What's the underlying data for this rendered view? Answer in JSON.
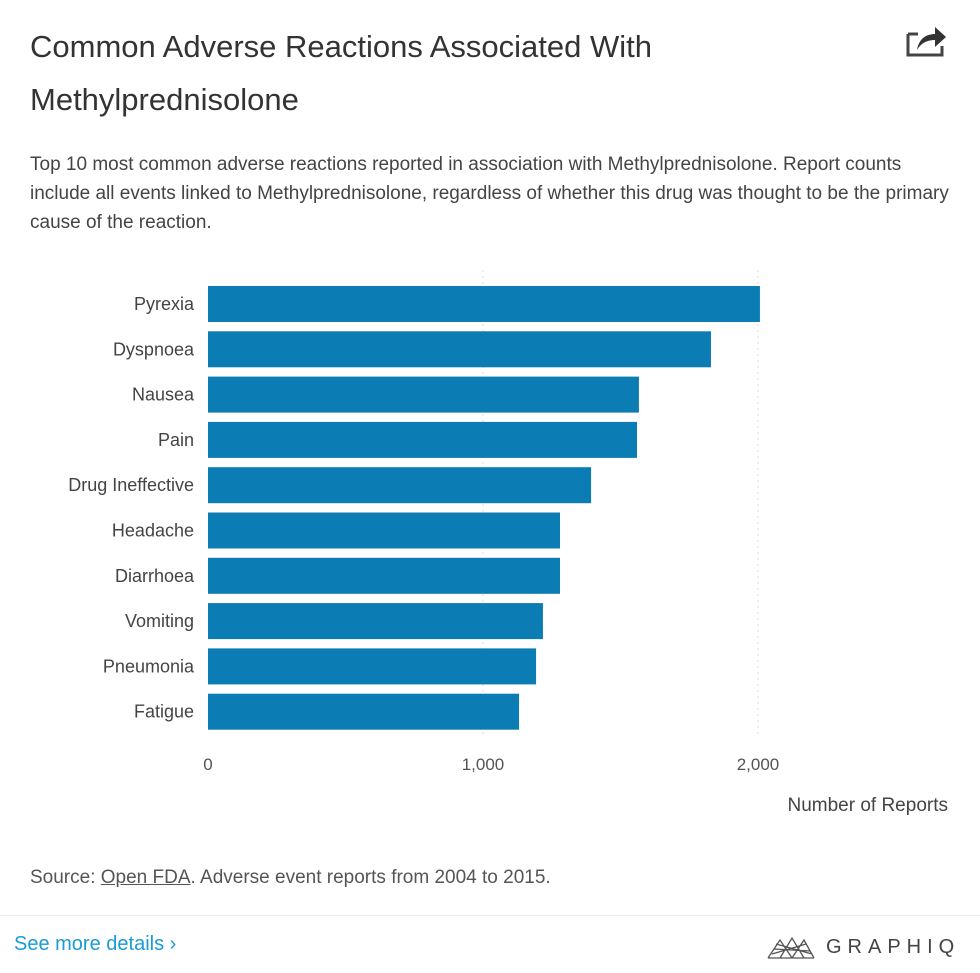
{
  "header": {
    "title": "Common Adverse Reactions Associated With Methylprednisolone",
    "share_icon": "share-icon",
    "subtitle": "Top 10 most common adverse reactions reported in association with Methylprednisolone. Report counts include all events linked to Methylprednisolone, regardless of whether this drug was thought to be the primary cause of the reaction."
  },
  "chart_data": {
    "type": "bar",
    "orientation": "horizontal",
    "categories": [
      "Pyrexia",
      "Dyspnoea",
      "Nausea",
      "Pain",
      "Drug Ineffective",
      "Headache",
      "Diarrhoea",
      "Vomiting",
      "Pneumonia",
      "Fatigue"
    ],
    "values": [
      2007,
      1829,
      1567,
      1560,
      1393,
      1280,
      1280,
      1218,
      1193,
      1131
    ],
    "xlabel": "Number of Reports",
    "ylabel": "",
    "xlim": [
      0,
      2100
    ],
    "xticks": [
      0,
      1000,
      2000
    ],
    "xtick_labels": [
      "0",
      "1,000",
      "2,000"
    ],
    "grid": "vertical dotted",
    "color": "#0b7db4"
  },
  "footer": {
    "source_prefix": "Source: ",
    "source_link": "Open FDA",
    "source_suffix": ". Adverse event reports from 2004 to 2015.",
    "see_more": "See more details ›",
    "logo_text": "GRAPHIQ"
  }
}
